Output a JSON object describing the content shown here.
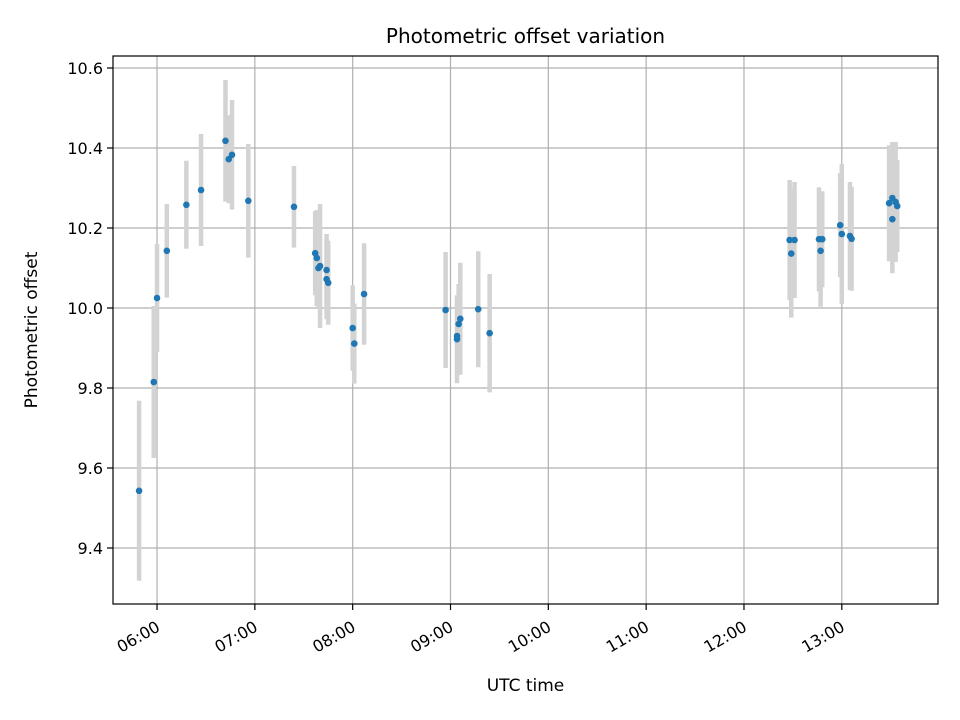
{
  "chart_data": {
    "type": "scatter",
    "title": "Photometric offset variation",
    "xlabel": "UTC time",
    "ylabel": "Photometric offset",
    "xlim": [
      "05:33",
      "13:59"
    ],
    "ylim": [
      9.26,
      10.63
    ],
    "x_ticks": [
      "06:00",
      "07:00",
      "08:00",
      "09:00",
      "10:00",
      "11:00",
      "12:00",
      "13:00"
    ],
    "y_ticks": [
      "9.4",
      "9.6",
      "9.8",
      "10.0",
      "10.2",
      "10.4",
      "10.6"
    ],
    "grid": true,
    "marker_color": "#1f77b4",
    "errorbar_color": "#d3d3d3",
    "points": [
      {
        "x": "05:49",
        "y": 9.543,
        "err": 0.225
      },
      {
        "x": "05:46",
        "y": 9.543,
        "err": 0.225
      },
      {
        "x": "05:47",
        "y": 9.543,
        "err": 0.225
      },
      {
        "x": "05:48",
        "y": 9.543,
        "err": 0.225
      },
      {
        "x": "05:50",
        "y": 9.543,
        "err": 0.225
      },
      {
        "x": "05:45",
        "y": 9.543,
        "err": 0.225
      },
      {
        "x": "05:48",
        "y": 9.543,
        "err": 0.225
      },
      {
        "x": "05:58",
        "y": 9.815,
        "err": 0.19
      },
      {
        "x": "05:43",
        "y": 9.543,
        "err": 0.225
      },
      {
        "x": "05:50",
        "y": 9.543,
        "err": 0.225
      }
    ]
  }
}
